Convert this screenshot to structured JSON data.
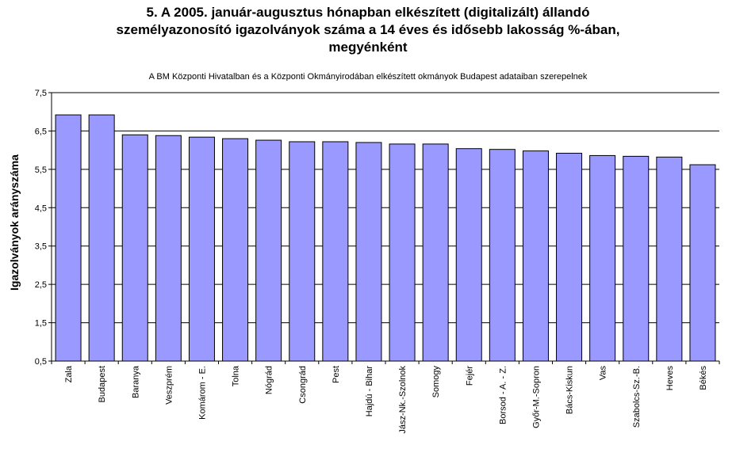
{
  "title_lines": [
    "5. A 2005. január-augusztus hónapban elkészített (digitalizált) állandó",
    "személyazonosító igazolványok száma a 14 éves és idősebb lakosság %-ában,",
    "megyénként"
  ],
  "subtitle": "A BM Központi Hivatalban és a Központi Okmányirodában elkészített  okmányok Budapest adataiban szerepelnek",
  "chart_data": {
    "type": "bar",
    "title": "5. A 2005. január-augusztus hónapban elkészített (digitalizált) állandó személyazonosító igazolványok száma a 14 éves és idősebb lakosság %-ában, megyénként",
    "xlabel": "",
    "ylabel": "Igazolványok arányszáma",
    "ylim": [
      0.5,
      7.5
    ],
    "yticks": [
      "0,5",
      "1,5",
      "2,5",
      "3,5",
      "4,5",
      "5,5",
      "6,5",
      "7,5"
    ],
    "ytick_values": [
      0.5,
      1.5,
      2.5,
      3.5,
      4.5,
      5.5,
      6.5,
      7.5
    ],
    "grid": true,
    "bar_color": "#9999ff",
    "categories": [
      "Zala",
      "Budapest",
      "Baranya",
      "Veszprém",
      "Komárom - E.",
      "Tolna",
      "Nógrád",
      "Csongrád",
      "Pest",
      "Hajdú - Bihar",
      "Jász-Nk.-Szolnok",
      "Somogy",
      "Fejér",
      "Borsod - A. - Z.",
      "Győr-M.-Sopron",
      "Bács-Kiskun",
      "Vas",
      "Szabolcs-Sz.-B.",
      "Heves",
      "Békés"
    ],
    "values": [
      6.92,
      6.92,
      6.4,
      6.38,
      6.34,
      6.3,
      6.26,
      6.22,
      6.22,
      6.2,
      6.16,
      6.16,
      6.04,
      6.02,
      5.98,
      5.92,
      5.86,
      5.84,
      5.82,
      5.62
    ]
  }
}
